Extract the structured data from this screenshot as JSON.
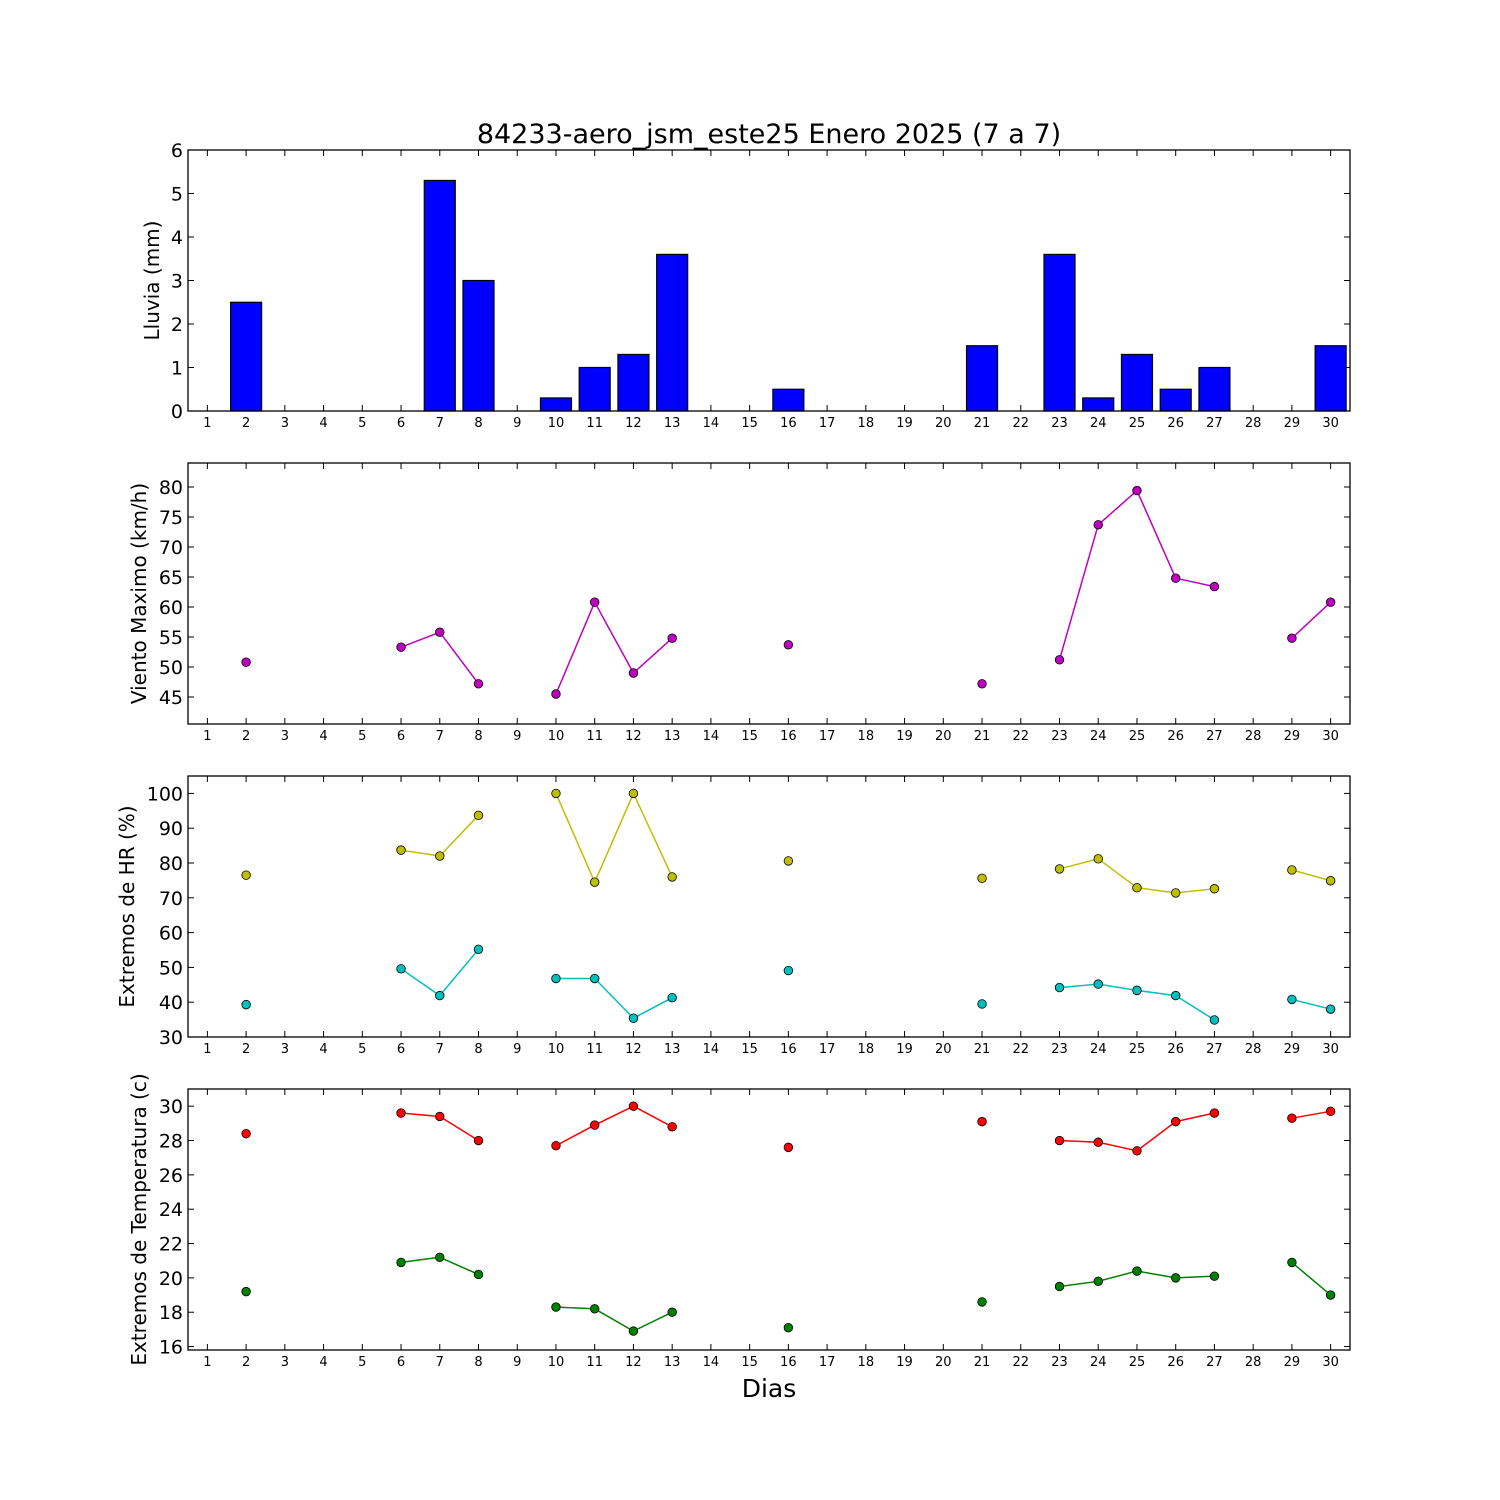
{
  "title": "84233-aero_jsm_este25 Enero 2025  (7 a 7)",
  "xlabel": "Dias",
  "days": [
    1,
    2,
    3,
    4,
    5,
    6,
    7,
    8,
    9,
    10,
    11,
    12,
    13,
    14,
    15,
    16,
    17,
    18,
    19,
    20,
    21,
    22,
    23,
    24,
    25,
    26,
    27,
    28,
    29,
    30
  ],
  "colors": {
    "rain": "#0000ff",
    "wind": "#bf00bf",
    "hr_max": "#bfbf00",
    "hr_min": "#00bfbf",
    "temp_max": "#ff0000",
    "temp_min": "#008000"
  },
  "chart_data": [
    {
      "type": "bar",
      "ylabel": "Lluvia (mm)",
      "ylim": [
        0,
        6
      ],
      "yticks": [
        0,
        1,
        2,
        3,
        4,
        5,
        6
      ],
      "x": [
        1,
        2,
        3,
        4,
        5,
        6,
        7,
        8,
        9,
        10,
        11,
        12,
        13,
        14,
        15,
        16,
        17,
        18,
        19,
        20,
        21,
        22,
        23,
        24,
        25,
        26,
        27,
        28,
        29,
        30
      ],
      "series": [
        {
          "values": [
            0,
            2.5,
            0,
            0,
            0,
            0,
            5.3,
            3.0,
            0,
            0.3,
            1.0,
            1.3,
            3.6,
            0,
            0,
            0.5,
            0,
            0,
            0,
            0,
            1.5,
            0,
            3.6,
            0.3,
            1.3,
            0.5,
            1.0,
            0,
            0,
            1.5
          ]
        }
      ]
    },
    {
      "type": "line",
      "ylabel": "Viento Maximo (km/h)",
      "ylim": [
        40.5,
        84
      ],
      "yticks": [
        45,
        50,
        55,
        60,
        65,
        70,
        75,
        80
      ],
      "x": [
        1,
        2,
        3,
        4,
        5,
        6,
        7,
        8,
        9,
        10,
        11,
        12,
        13,
        14,
        15,
        16,
        17,
        18,
        19,
        20,
        21,
        22,
        23,
        24,
        25,
        26,
        27,
        28,
        29,
        30
      ],
      "series": [
        {
          "values": [
            null,
            50.8,
            null,
            null,
            null,
            53.3,
            55.8,
            47.2,
            null,
            45.5,
            60.8,
            49.0,
            54.8,
            null,
            null,
            53.7,
            null,
            null,
            null,
            null,
            47.2,
            null,
            51.2,
            73.7,
            79.4,
            64.8,
            63.4,
            null,
            54.8,
            60.8
          ]
        }
      ]
    },
    {
      "type": "line",
      "ylabel": "Extremos de HR (%)",
      "ylim": [
        30,
        105
      ],
      "yticks": [
        30,
        40,
        50,
        60,
        70,
        80,
        90,
        100
      ],
      "x": [
        1,
        2,
        3,
        4,
        5,
        6,
        7,
        8,
        9,
        10,
        11,
        12,
        13,
        14,
        15,
        16,
        17,
        18,
        19,
        20,
        21,
        22,
        23,
        24,
        25,
        26,
        27,
        28,
        29,
        30
      ],
      "series": [
        {
          "values": [
            null,
            76.5,
            null,
            null,
            null,
            83.7,
            82.0,
            93.7,
            null,
            100,
            74.5,
            100,
            76.0,
            null,
            null,
            80.6,
            null,
            null,
            null,
            null,
            75.6,
            null,
            78.3,
            81.2,
            72.9,
            71.4,
            72.6,
            null,
            78.0,
            74.9
          ]
        },
        {
          "values": [
            null,
            39.3,
            null,
            null,
            null,
            49.6,
            41.9,
            55.2,
            null,
            46.8,
            46.8,
            35.4,
            41.3,
            null,
            null,
            49.1,
            null,
            null,
            null,
            null,
            39.5,
            null,
            44.2,
            45.2,
            43.4,
            41.9,
            34.9,
            null,
            40.8,
            38.0
          ]
        }
      ]
    },
    {
      "type": "line",
      "ylabel": "Extremos de Temperatura (c)",
      "ylim": [
        15.8,
        31
      ],
      "yticks": [
        16,
        18,
        20,
        22,
        24,
        26,
        28,
        30
      ],
      "x": [
        1,
        2,
        3,
        4,
        5,
        6,
        7,
        8,
        9,
        10,
        11,
        12,
        13,
        14,
        15,
        16,
        17,
        18,
        19,
        20,
        21,
        22,
        23,
        24,
        25,
        26,
        27,
        28,
        29,
        30
      ],
      "series": [
        {
          "values": [
            null,
            28.4,
            null,
            null,
            null,
            29.6,
            29.4,
            28.0,
            null,
            27.7,
            28.9,
            30.0,
            28.8,
            null,
            null,
            27.6,
            null,
            null,
            null,
            null,
            29.1,
            null,
            28.0,
            27.9,
            27.4,
            29.1,
            29.6,
            null,
            29.3,
            29.7
          ]
        },
        {
          "values": [
            null,
            19.2,
            null,
            null,
            null,
            20.9,
            21.2,
            20.2,
            null,
            18.3,
            18.2,
            16.9,
            18.0,
            null,
            null,
            17.1,
            null,
            null,
            null,
            null,
            18.6,
            null,
            19.5,
            19.8,
            20.4,
            20.0,
            20.1,
            null,
            20.9,
            19.0
          ]
        }
      ]
    }
  ]
}
